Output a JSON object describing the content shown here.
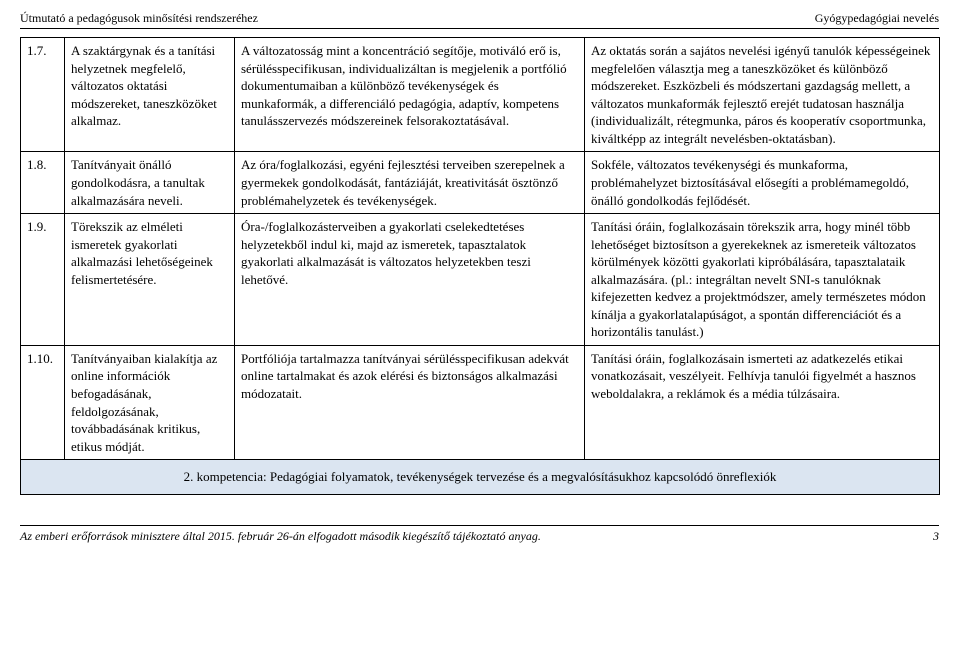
{
  "header": {
    "left": "Útmutató a pedagógusok minősítési rendszeréhez",
    "right": "Gyógypedagógiai nevelés"
  },
  "rows": [
    {
      "n": "1.7.",
      "col2": "A szaktárgynak és a tanítási helyzetnek megfelelő, változatos oktatási módszereket, taneszközöket alkalmaz.",
      "col3": "A változatosság mint a koncentráció segítője, motiváló erő is, sérülésspecifikusan, individualizáltan is megjelenik a portfólió dokumentumaiban a különböző tevékenységek és munkaformák, a differenciáló pedagógia, adaptív, kompetens tanulásszervezés módszereinek felsorakoztatásával.",
      "col4": "Az oktatás során a sajátos nevelési igényű tanulók képességeinek megfelelően választja meg a taneszközöket és különböző módszereket. Eszközbeli és módszertani gazdagság mellett, a változatos munkaformák fejlesztő erejét tudatosan használja (individualizált, rétegmunka, páros és kooperatív csoportmunka, kiváltképp az integrált nevelésben-oktatásban)."
    },
    {
      "n": "1.8.",
      "col2": "Tanítványait önálló gondolkodásra, a tanultak alkalmazására neveli.",
      "col3": "Az óra/foglalkozási, egyéni fejlesztési terveiben szerepelnek a gyermekek gondolkodását, fantáziáját, kreativitását ösztönző problémahelyzetek és tevékenységek.",
      "col4": "Sokféle, változatos tevékenységi és munkaforma, problémahelyzet biztosításával elősegíti a problémamegoldó, önálló gondolkodás fejlődését."
    },
    {
      "n": "1.9.",
      "col2": "Törekszik az elméleti ismeretek gyakorlati alkalmazási lehetőségeinek felismertetésére.",
      "col3": "Óra-/foglalkozásterveiben a gyakorlati cselekedtetéses helyzetekből indul ki, majd az ismeretek, tapasztalatok gyakorlati alkalmazását is változatos helyzetekben teszi lehetővé.",
      "col4": "Tanítási óráin, foglalkozásain törekszik arra, hogy minél több lehetőséget biztosítson a gyerekeknek az ismereteik változatos körülmények közötti gyakorlati kipróbálására, tapasztalataik alkalmazására. (pl.: integráltan nevelt SNI-s tanulóknak kifejezetten kedvez a projektmódszer, amely természetes módon kínálja a gyakorlatalapúságot, a spontán differenciációt és a horizontális tanulást.)"
    },
    {
      "n": "1.10.",
      "col2": "Tanítványaiban kialakítja az online információk befogadásának, feldolgozásának, továbbadásának kritikus, etikus módját.",
      "col3": "Portfóliója tartalmazza tanítványai sérülésspecifikusan adekvát online tartalmakat és azok elérési és biztonságos alkalmazási módozatait.",
      "col4": "Tanítási óráin, foglalkozásain ismerteti az adatkezelés etikai vonatkozásait, veszélyeit. Felhívja tanulói figyelmét a hasznos weboldalakra, a reklámok és a média túlzásaira."
    }
  ],
  "competence": "2. kompetencia: Pedagógiai folyamatok, tevékenységek tervezése és a megvalósításukhoz kapcsolódó önreflexiók",
  "footer": {
    "left": "Az emberi erőforrások minisztere által 2015. február 26-án elfogadott második kiegészítő tájékoztató anyag.",
    "page": "3"
  }
}
